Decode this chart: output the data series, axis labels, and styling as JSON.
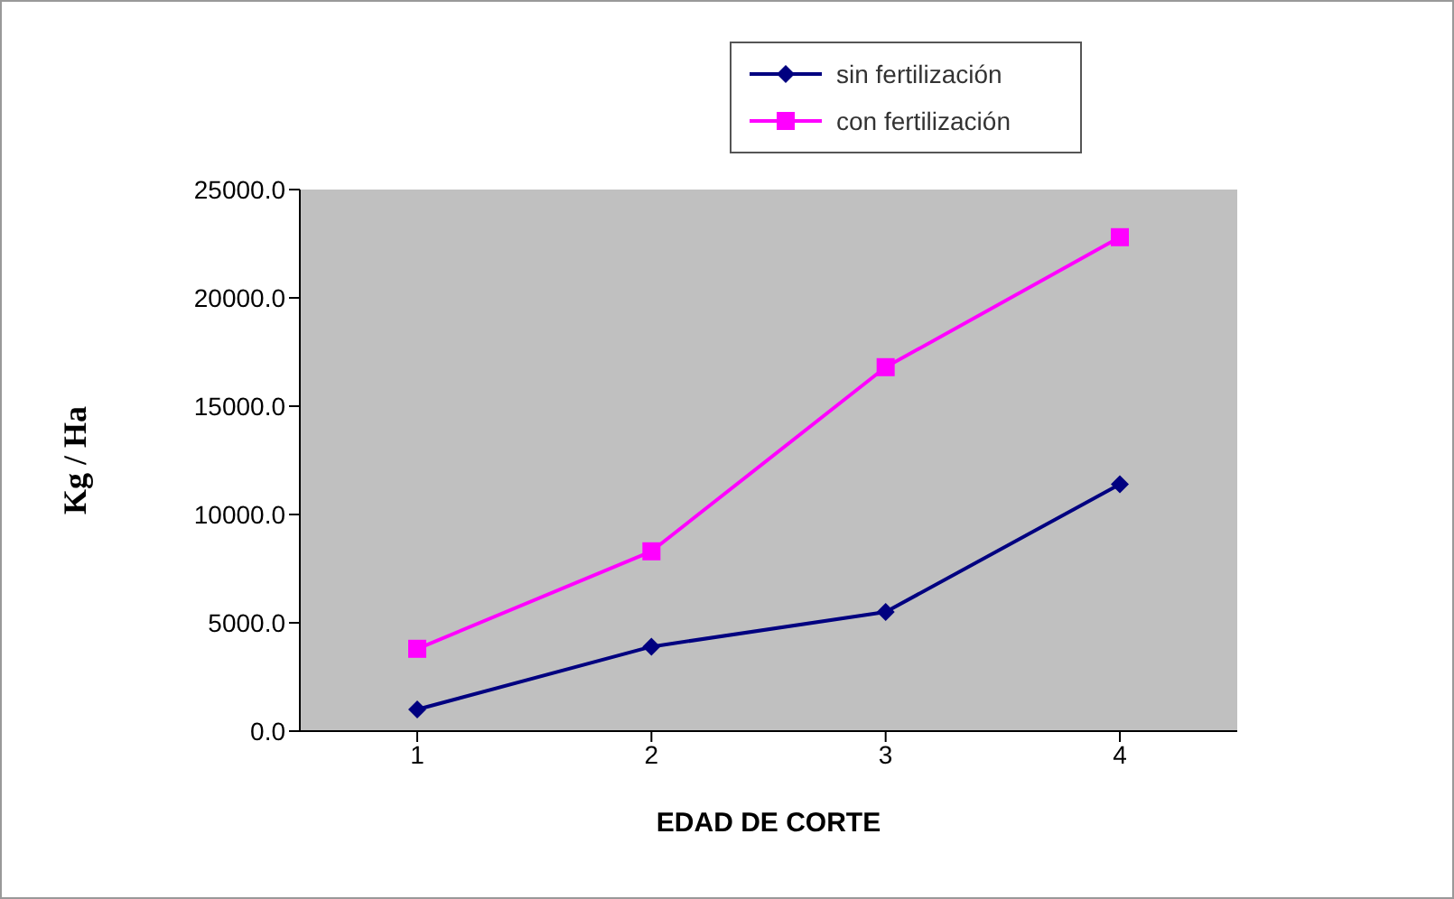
{
  "chart_data": {
    "type": "line",
    "xlabel": "EDAD DE CORTE",
    "ylabel": "Kg / Ha",
    "categories": [
      "1",
      "2",
      "3",
      "4"
    ],
    "series": [
      {
        "name": "sin fertilización",
        "color": "#000080",
        "marker": "diamond",
        "values": [
          1000,
          3900,
          5500,
          11400
        ]
      },
      {
        "name": "con fertilización",
        "color": "#ff00ff",
        "marker": "square",
        "values": [
          3800,
          8300,
          16800,
          22800
        ]
      }
    ],
    "ylim": [
      0,
      25000
    ],
    "yticks": [
      {
        "value": 0,
        "label": "0.0"
      },
      {
        "value": 5000,
        "label": "5000.0"
      },
      {
        "value": 10000,
        "label": "10000.0"
      },
      {
        "value": 15000,
        "label": "15000.0"
      },
      {
        "value": 20000,
        "label": "20000.0"
      },
      {
        "value": 25000,
        "label": "25000.0"
      }
    ],
    "grid": false,
    "legend": "top",
    "line_style": "solid"
  }
}
